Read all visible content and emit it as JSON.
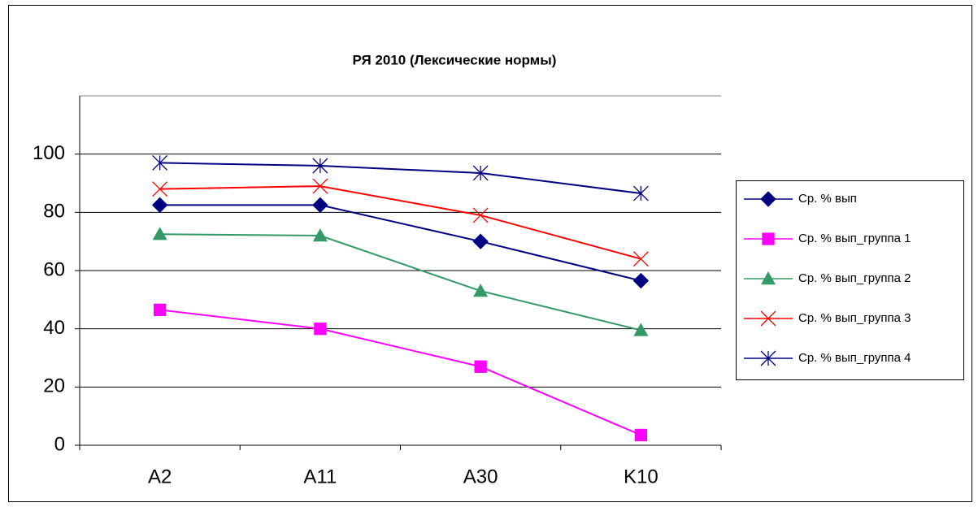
{
  "chart_data": {
    "type": "line",
    "title": "РЯ 2010 (Лексические нормы)",
    "categories": [
      "A2",
      "A11",
      "A30",
      "K10"
    ],
    "series": [
      {
        "name": "Ср. % вып",
        "color": "#000080",
        "marker": "diamond",
        "values": [
          82.5,
          82.5,
          70,
          56.5
        ]
      },
      {
        "name": "Ср. % вып_группа 1",
        "color": "#ff00ff",
        "marker": "square",
        "values": [
          46.5,
          40,
          27,
          3.5
        ]
      },
      {
        "name": "Ср. % вып_группа 2",
        "color": "#339966",
        "marker": "triangle",
        "values": [
          72.5,
          72,
          53,
          39.5
        ]
      },
      {
        "name": "Ср. % вып_группа 3",
        "color": "#ff0000",
        "marker": "x",
        "values": [
          88,
          89,
          79,
          64
        ]
      },
      {
        "name": "Ср. % вып_группа 4",
        "color": "#000080",
        "marker": "star",
        "values": [
          97,
          96,
          93.5,
          86.5
        ]
      }
    ],
    "ylim": [
      0,
      120
    ],
    "yticks": [
      0,
      20,
      40,
      60,
      80,
      100
    ],
    "grid": true,
    "legend": "right"
  }
}
